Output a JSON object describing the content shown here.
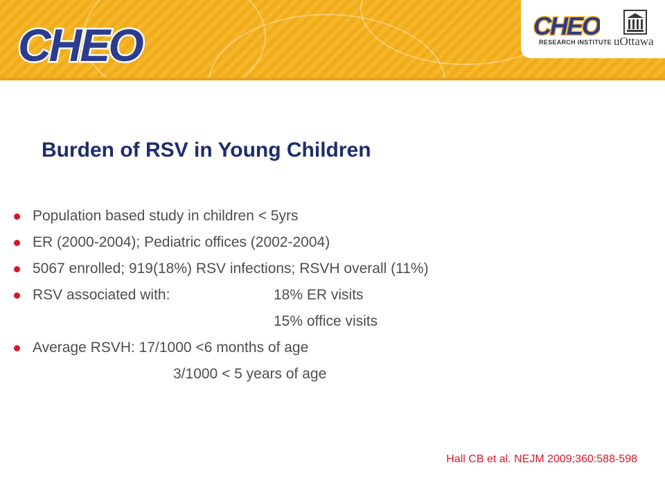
{
  "header": {
    "main_logo": "CHEO",
    "research_logo": "CHEO",
    "research_sub": "RESEARCH INSTITUTE",
    "university": "uOttawa",
    "colors": {
      "banner": "#f7b21c",
      "logo_blue": "#2c3c8e",
      "accent_red": "#d6172a"
    }
  },
  "slide": {
    "title": "Burden of RSV in Young Children",
    "bullets": [
      {
        "text": "Population based study in children < 5yrs"
      },
      {
        "text": "ER (2000-2004); Pediatric offices (2002-2004)"
      },
      {
        "text": "5067 enrolled; 919(18%) RSV infections; RSVH overall (11%)"
      },
      {
        "text": "RSV associated with:",
        "detail": "18% ER visits"
      },
      {
        "continuation": "15% office visits"
      },
      {
        "text": "Average RSVH: 17/1000 <6 months of age"
      },
      {
        "continuation": "3/1000 < 5 years of age"
      }
    ],
    "citation": "Hall CB et al. NEJM 2009;360:588-598"
  }
}
